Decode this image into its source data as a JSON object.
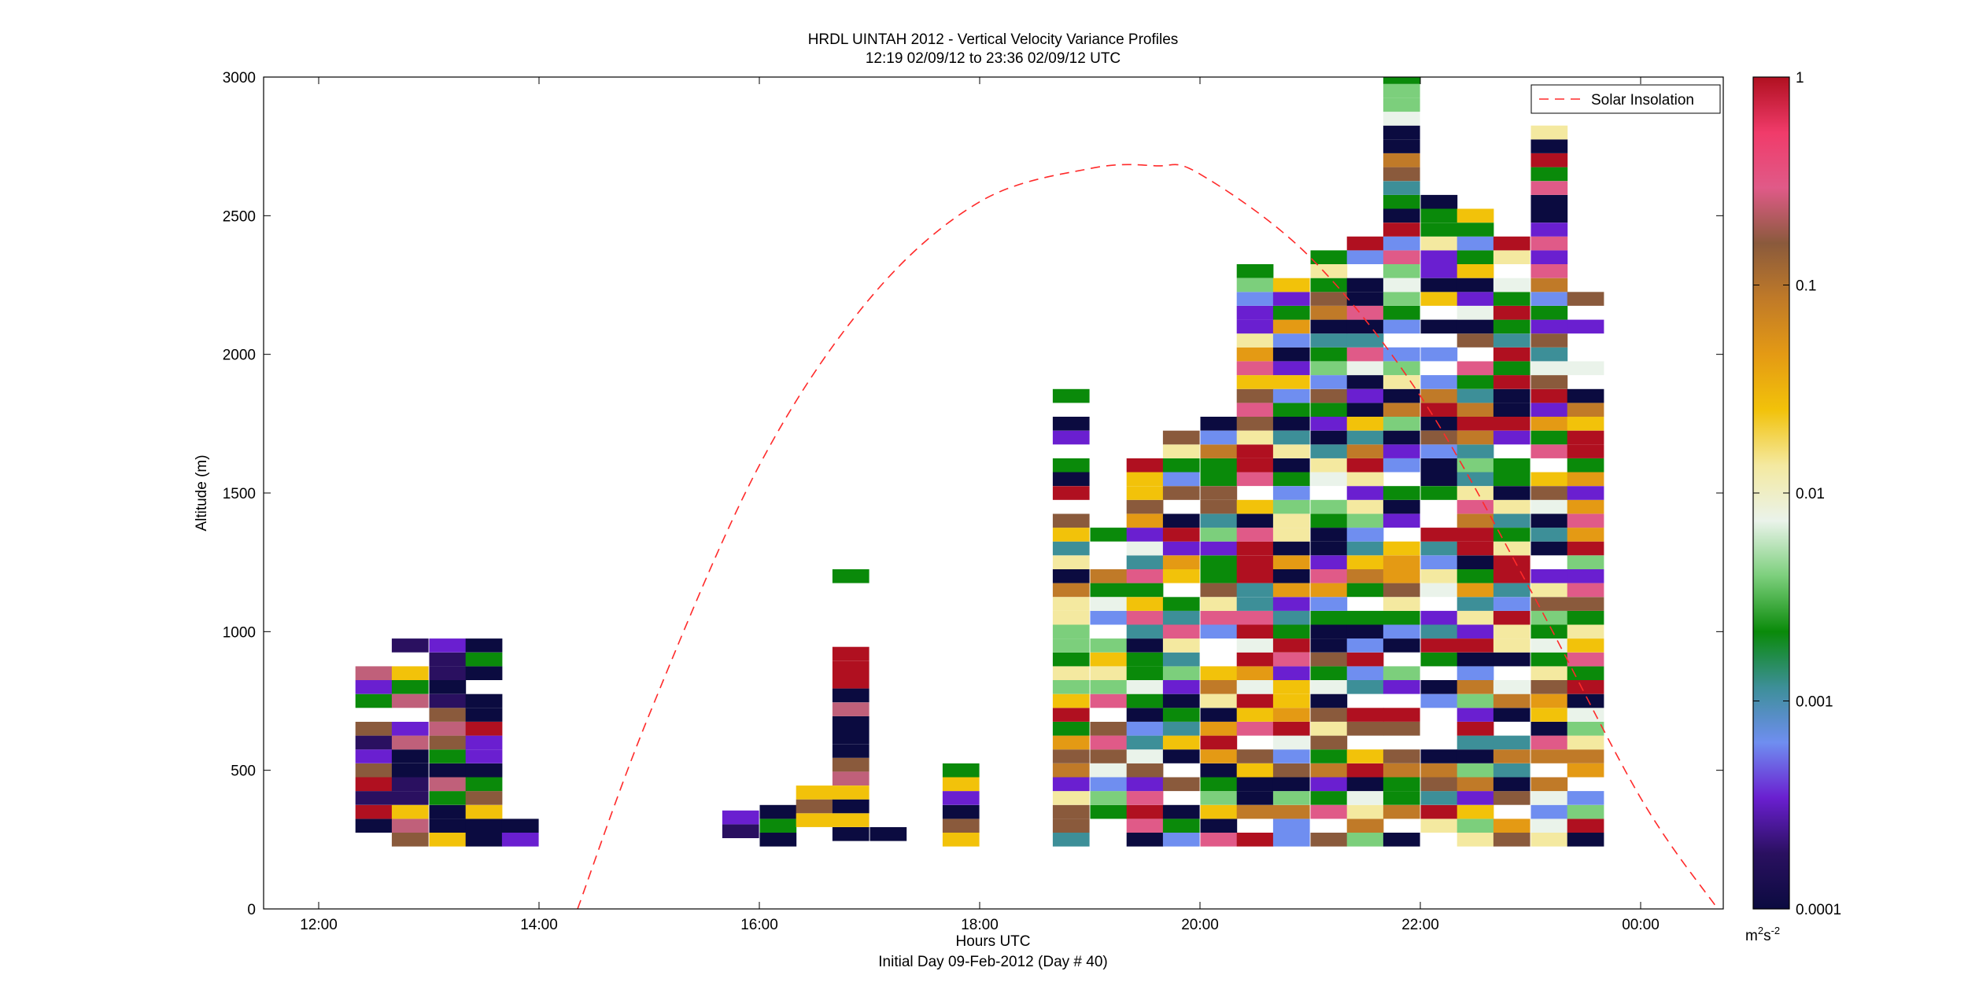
{
  "figure": {
    "title_line1": "HRDL UINTAH 2012 - Vertical Velocity Variance Profiles",
    "title_line2": "12:19 02/09/12 to 23:36 02/09/12  UTC",
    "xlabel": "Hours UTC",
    "footer": "Initial Day 09-Feb-2012 (Day # 40)",
    "ylabel": "Altitude (m)",
    "legend_label": "Solar Insolation",
    "colorbar_unit_base": "m",
    "colorbar_unit_exp1": "2",
    "colorbar_unit_mid": "s",
    "colorbar_unit_exp2": "-2"
  },
  "chart_data": {
    "type": "heatmap",
    "x_unit": "hours UTC (values beyond 24 are after midnight)",
    "xlim": [
      11.5,
      24.75
    ],
    "ylim": [
      0,
      3000
    ],
    "x_ticks": [
      12,
      14,
      16,
      18,
      20,
      22,
      24
    ],
    "x_tick_labels": [
      "12:00",
      "14:00",
      "16:00",
      "18:00",
      "20:00",
      "22:00",
      "00:00"
    ],
    "y_ticks": [
      0,
      500,
      1000,
      1500,
      2000,
      2500,
      3000
    ],
    "y_tick_labels": [
      "0",
      "500",
      "1000",
      "1500",
      "2000",
      "2500",
      "3000"
    ],
    "colorbar": {
      "scale": "log",
      "range": [
        0.0001,
        1
      ],
      "ticks": [
        0.0001,
        0.001,
        0.01,
        0.1,
        1
      ],
      "tick_labels": [
        "0.0001",
        "0.001",
        "0.01",
        "0.1",
        "1"
      ],
      "colormap_stops": [
        "#0b0b40",
        "#2a1060",
        "#6a1fd0",
        "#6f8ef0",
        "#3d8f98",
        "#0a8a0a",
        "#7ccf7c",
        "#eaf3ea",
        "#f4e9a0",
        "#f2c20a",
        "#e49a14",
        "#c07a28",
        "#8a5a3c",
        "#e05a88",
        "#f03b6a",
        "#b01020"
      ]
    },
    "profile_altitude_step_m": 50,
    "profiles": [
      {
        "x": 12.5,
        "top": 850,
        "bottom": 250,
        "gaps": 2
      },
      {
        "x": 12.83,
        "top": 970,
        "bottom": 250,
        "gaps": 3
      },
      {
        "x": 13.17,
        "top": 1000,
        "bottom": 250,
        "gaps": 4
      },
      {
        "x": 13.5,
        "top": 950,
        "bottom": 250,
        "gaps": 1
      },
      {
        "x": 13.83,
        "top": 300,
        "bottom": 250,
        "gaps": 0
      },
      {
        "x": 15.83,
        "top": 370,
        "bottom": 280,
        "gaps": 0
      },
      {
        "x": 16.17,
        "top": 370,
        "bottom": 250,
        "gaps": 0
      },
      {
        "x": 16.5,
        "top": 460,
        "bottom": 320,
        "gaps": 0
      },
      {
        "x": 16.83,
        "top": 950,
        "bottom": 270,
        "gaps": 0,
        "extra_cell": 1200
      },
      {
        "x": 17.17,
        "top": 280,
        "bottom": 270,
        "gaps": 0
      },
      {
        "x": 17.83,
        "top": 520,
        "bottom": 250,
        "gaps": 2
      },
      {
        "x": 18.83,
        "top": 1900,
        "bottom": 250,
        "gaps": 4
      },
      {
        "x": 19.17,
        "top": 1350,
        "bottom": 250,
        "gaps": 3
      },
      {
        "x": 19.5,
        "top": 1600,
        "bottom": 250,
        "gaps": 2
      },
      {
        "x": 19.83,
        "top": 1700,
        "bottom": 250,
        "gaps": 2
      },
      {
        "x": 20.17,
        "top": 1800,
        "bottom": 250,
        "gaps": 2
      },
      {
        "x": 20.5,
        "top": 2300,
        "bottom": 250,
        "gaps": 5
      },
      {
        "x": 20.83,
        "top": 2250,
        "bottom": 250,
        "gaps": 2
      },
      {
        "x": 21.17,
        "top": 2350,
        "bottom": 250,
        "gaps": 2
      },
      {
        "x": 21.5,
        "top": 2400,
        "bottom": 250,
        "gaps": 3
      },
      {
        "x": 21.83,
        "top": 3000,
        "bottom": 250,
        "gaps": 5
      },
      {
        "x": 22.17,
        "top": 2550,
        "bottom": 250,
        "gaps": 4
      },
      {
        "x": 22.5,
        "top": 2500,
        "bottom": 250,
        "gaps": 2
      },
      {
        "x": 22.83,
        "top": 2400,
        "bottom": 250,
        "gaps": 3
      },
      {
        "x": 23.17,
        "top": 2800,
        "bottom": 250,
        "gaps": 4
      },
      {
        "x": 23.5,
        "top": 2200,
        "bottom": 250,
        "gaps": 3
      }
    ],
    "solar_insolation": {
      "series_name": "Solar Insolation",
      "style": "dashed",
      "color": "#ff2a2a",
      "x": [
        14.35,
        15,
        16,
        17,
        18,
        19,
        19.6,
        20,
        21,
        22,
        23,
        24,
        24.7
      ],
      "y": [
        0,
        700,
        1600,
        2200,
        2550,
        2670,
        2680,
        2650,
        2350,
        1850,
        1150,
        400,
        0
      ]
    },
    "grid": false,
    "legend_position": "top-right"
  }
}
